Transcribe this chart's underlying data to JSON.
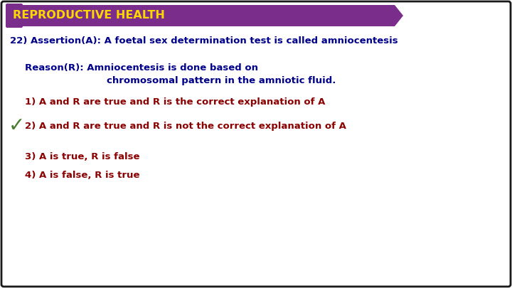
{
  "title": "REPRODUCTIVE HEALTH",
  "title_bg": "#7B2D8B",
  "title_color": "#FFD700",
  "bg_color": "#FFFFFF",
  "border_color": "#1a1a1a",
  "assertion_text": "22) Assertion(A): A foetal sex determination test is called amniocentesis",
  "assertion_color": "#00008B",
  "reason_line1": "Reason(R): Amniocentesis is done based on",
  "reason_line2": "chromosomal pattern in the amniotic fluid.",
  "reason_color": "#00008B",
  "option1": "1) A and R are true and R is the correct explanation of A",
  "option2": "2) A and R are true and R is not the correct explanation of A",
  "option3": "3) A is true, R is false",
  "option4": "4) A is false, R is true",
  "options_color": "#8B0000",
  "check_color": "#4A7C30",
  "title_fontsize": 11.5,
  "assertion_fontsize": 9.5,
  "reason_fontsize": 9.5,
  "option_fontsize": 9.5
}
